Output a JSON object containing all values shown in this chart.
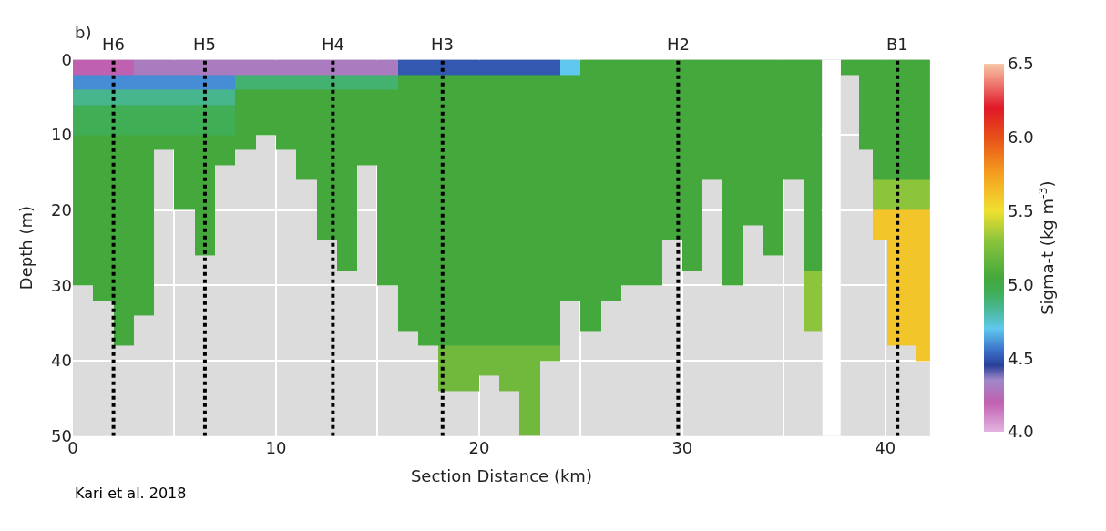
{
  "chart_data": {
    "type": "heatmap",
    "title": "b)",
    "ylabel": "Depth (m)",
    "xlabel": "Section Distance (km)",
    "clabel": "Sigma-t (kg m$^{-3}$)",
    "annotations": [
      "Kari et al. 2018"
    ],
    "xlim": [
      0,
      42.2
    ],
    "xticks": [
      0,
      {
        "value": 5,
        "label": null
      },
      10,
      {
        "value": 15,
        "label": null
      },
      20,
      {
        "value": 25,
        "label": null
      },
      30,
      {
        "value": 35,
        "label": null
      },
      40
    ],
    "ylim": [
      50,
      0
    ],
    "yticks": [
      0,
      10,
      20,
      30,
      40,
      50
    ],
    "grid": true,
    "x": [
      0.5,
      1.5,
      2.5,
      3.5,
      4.5,
      5.5,
      6.5,
      7.5,
      8.5,
      9.5,
      10.5,
      11.5,
      12.5,
      13.5,
      14.5,
      15.5,
      16.5,
      17.5,
      18.5,
      19.5,
      20.5,
      21.5,
      22.5,
      23.5,
      24.5,
      25.5,
      26.5,
      27.5,
      28.5,
      29.5,
      30.5,
      31.5,
      32.5,
      33.5,
      34.5,
      35.5,
      36.5,
      37.25,
      38.35,
      39.05,
      39.75,
      40.45,
      41.15,
      41.85
    ],
    "y": [
      1,
      3,
      5,
      7,
      9,
      11,
      13,
      15,
      17,
      19,
      21,
      23,
      25,
      27,
      29,
      31,
      33,
      35,
      37,
      39,
      41,
      43,
      45,
      47,
      49
    ],
    "clim": [
      4.0,
      6.5
    ],
    "cticks": [
      {
        "value": 4.0,
        "label": "4.0"
      },
      {
        "value": 4.5,
        "label": "4.5"
      },
      {
        "value": 5.0,
        "label": "5.0"
      },
      {
        "value": 5.5,
        "label": "5.5"
      },
      {
        "value": 6.0,
        "label": "6.0"
      },
      {
        "value": 6.5,
        "label": "6.5"
      }
    ],
    "bands": [
      {
        "axis": "x",
        "from": 36.9,
        "to": 37.8,
        "color": "#ffffff"
      }
    ],
    "ref_lines": [
      {
        "axis": "x",
        "value": 2,
        "label": "H6",
        "color": "#000000",
        "line_style": "dotted"
      },
      {
        "axis": "x",
        "value": 6.5,
        "label": "H5",
        "color": "#000000",
        "line_style": "dotted"
      },
      {
        "axis": "x",
        "value": 12.8,
        "label": "H4",
        "color": "#000000",
        "line_style": "dotted"
      },
      {
        "axis": "x",
        "value": 18.2,
        "label": "H3",
        "color": "#000000",
        "line_style": "dotted"
      },
      {
        "axis": "x",
        "value": 29.8,
        "label": "H2",
        "color": "#000000",
        "line_style": "dotted"
      },
      {
        "axis": "x",
        "value": 40.6,
        "label": "B1",
        "color": "#000000",
        "line_style": "dotted"
      }
    ],
    "cells": [
      [
        4.2,
        4.2,
        4.2,
        4.3,
        4.3,
        4.3,
        4.3,
        4.3,
        4.3,
        4.3,
        4.3,
        4.3,
        4.3,
        4.3,
        4.3,
        4.3,
        4.5,
        4.5,
        4.5,
        4.5,
        4.5,
        4.5,
        4.5,
        4.5,
        4.7,
        5.05,
        5.05,
        5.05,
        5.05,
        5.05,
        5.05,
        5.05,
        5.05,
        5.05,
        5.05,
        5.05,
        5.05,
        null,
        5.05,
        5.05,
        5.05,
        5.05,
        5.05,
        5.05
      ],
      [
        4.6,
        4.6,
        4.6,
        4.6,
        4.6,
        4.6,
        4.6,
        4.6,
        4.9,
        4.9,
        4.9,
        4.9,
        4.9,
        4.9,
        4.9,
        4.9,
        5.05,
        5.05,
        5.05,
        5.05,
        5.05,
        5.05,
        5.05,
        5.05,
        5.05,
        5.05,
        5.05,
        5.05,
        5.05,
        5.05,
        5.05,
        5.05,
        5.05,
        5.05,
        5.05,
        5.05,
        5.05,
        null,
        null,
        5.05,
        5.05,
        5.05,
        5.05,
        5.05
      ],
      [
        4.85,
        4.85,
        4.85,
        4.85,
        4.85,
        4.85,
        4.85,
        4.85,
        5.05,
        5.05,
        5.05,
        5.05,
        5.05,
        5.05,
        5.05,
        5.05,
        5.05,
        5.05,
        5.05,
        5.05,
        5.05,
        5.05,
        5.05,
        5.05,
        5.05,
        5.05,
        5.05,
        5.05,
        5.05,
        5.05,
        5.05,
        5.05,
        5.05,
        5.05,
        5.05,
        5.05,
        5.05,
        null,
        null,
        5.05,
        5.05,
        5.05,
        5.05,
        5.05
      ],
      [
        4.95,
        4.95,
        4.95,
        4.95,
        4.95,
        4.95,
        4.95,
        4.95,
        5.05,
        5.05,
        5.05,
        5.05,
        5.05,
        5.05,
        5.05,
        5.05,
        5.05,
        5.05,
        5.05,
        5.05,
        5.05,
        5.05,
        5.05,
        5.05,
        5.05,
        5.05,
        5.05,
        5.05,
        5.05,
        5.05,
        5.05,
        5.05,
        5.05,
        5.05,
        5.05,
        5.05,
        5.05,
        null,
        null,
        5.05,
        5.05,
        5.05,
        5.05,
        5.05
      ],
      [
        4.95,
        4.95,
        4.95,
        4.95,
        4.95,
        4.95,
        4.95,
        4.95,
        5.05,
        5.05,
        5.05,
        5.05,
        5.05,
        5.05,
        5.05,
        5.05,
        5.05,
        5.05,
        5.05,
        5.05,
        5.05,
        5.05,
        5.05,
        5.05,
        5.05,
        5.05,
        5.05,
        5.05,
        5.05,
        5.05,
        5.05,
        5.05,
        5.05,
        5.05,
        5.05,
        5.05,
        5.05,
        null,
        null,
        5.05,
        5.05,
        5.05,
        5.05,
        5.05
      ],
      [
        5.05,
        5.05,
        5.05,
        5.05,
        5.05,
        5.05,
        5.05,
        5.05,
        5.05,
        null,
        5.05,
        5.05,
        5.05,
        5.05,
        5.05,
        5.05,
        5.05,
        5.05,
        5.05,
        5.05,
        5.05,
        5.05,
        5.05,
        5.05,
        5.05,
        5.05,
        5.05,
        5.05,
        5.05,
        5.05,
        5.05,
        5.05,
        5.05,
        5.05,
        5.05,
        5.05,
        5.05,
        null,
        null,
        5.05,
        5.05,
        5.05,
        5.05,
        5.05
      ],
      [
        5.05,
        5.05,
        5.05,
        5.05,
        null,
        5.05,
        5.05,
        5.05,
        null,
        null,
        null,
        5.05,
        5.05,
        5.05,
        5.05,
        5.05,
        5.05,
        5.05,
        5.05,
        5.05,
        5.05,
        5.05,
        5.05,
        5.05,
        5.05,
        5.05,
        5.05,
        5.05,
        5.05,
        5.05,
        5.05,
        5.05,
        5.05,
        5.05,
        5.05,
        5.05,
        5.05,
        null,
        null,
        null,
        5.05,
        5.05,
        5.05,
        5.05
      ],
      [
        5.05,
        5.05,
        5.05,
        5.05,
        null,
        5.05,
        5.05,
        null,
        null,
        null,
        null,
        5.05,
        5.05,
        5.05,
        null,
        5.05,
        5.05,
        5.05,
        5.05,
        5.05,
        5.05,
        5.05,
        5.05,
        5.05,
        5.05,
        5.05,
        5.05,
        5.05,
        5.05,
        5.05,
        5.05,
        5.05,
        5.05,
        5.05,
        5.05,
        5.05,
        5.05,
        null,
        null,
        null,
        5.05,
        5.05,
        5.05,
        5.05
      ],
      [
        5.05,
        5.05,
        5.05,
        5.05,
        null,
        5.05,
        5.05,
        null,
        null,
        null,
        null,
        null,
        5.05,
        5.05,
        null,
        5.05,
        5.05,
        5.05,
        5.05,
        5.05,
        5.05,
        5.05,
        5.05,
        5.05,
        5.05,
        5.05,
        5.05,
        5.05,
        5.05,
        5.05,
        5.05,
        null,
        5.05,
        5.05,
        5.05,
        null,
        5.05,
        null,
        null,
        null,
        5.3,
        5.3,
        5.3,
        5.3
      ],
      [
        5.05,
        5.05,
        5.05,
        5.05,
        null,
        5.05,
        5.05,
        null,
        null,
        null,
        null,
        null,
        5.05,
        5.05,
        null,
        5.05,
        5.05,
        5.05,
        5.05,
        5.05,
        5.05,
        5.05,
        5.05,
        5.05,
        5.05,
        5.05,
        5.05,
        5.05,
        5.05,
        5.05,
        5.05,
        null,
        5.05,
        5.05,
        5.05,
        null,
        5.05,
        null,
        null,
        null,
        5.3,
        5.3,
        5.3,
        5.3
      ],
      [
        5.05,
        5.05,
        5.05,
        5.05,
        null,
        null,
        5.05,
        null,
        null,
        null,
        null,
        null,
        5.05,
        5.05,
        null,
        5.05,
        5.05,
        5.05,
        5.05,
        5.05,
        5.05,
        5.05,
        5.05,
        5.05,
        5.05,
        5.05,
        5.05,
        5.05,
        5.05,
        5.05,
        5.05,
        null,
        5.05,
        5.05,
        5.05,
        null,
        5.05,
        null,
        null,
        null,
        5.6,
        5.6,
        5.6,
        5.6
      ],
      [
        5.05,
        5.05,
        5.05,
        5.05,
        null,
        null,
        5.05,
        null,
        null,
        null,
        null,
        null,
        5.05,
        5.05,
        null,
        5.05,
        5.05,
        5.05,
        5.05,
        5.05,
        5.05,
        5.05,
        5.05,
        5.05,
        5.05,
        5.05,
        5.05,
        5.05,
        5.05,
        5.05,
        5.05,
        null,
        5.05,
        null,
        5.05,
        null,
        5.05,
        null,
        null,
        null,
        5.6,
        5.6,
        5.6,
        5.6
      ],
      [
        5.05,
        5.05,
        5.05,
        5.05,
        null,
        null,
        5.05,
        null,
        null,
        null,
        null,
        null,
        null,
        5.05,
        null,
        5.05,
        5.05,
        5.05,
        5.05,
        5.05,
        5.05,
        5.05,
        5.05,
        5.05,
        5.05,
        5.05,
        5.05,
        5.05,
        5.05,
        null,
        5.05,
        null,
        5.05,
        null,
        5.05,
        null,
        5.05,
        null,
        null,
        null,
        null,
        5.6,
        5.6,
        5.6
      ],
      [
        5.05,
        5.05,
        5.05,
        5.05,
        null,
        null,
        null,
        null,
        null,
        null,
        null,
        null,
        null,
        5.05,
        null,
        5.05,
        5.05,
        5.05,
        5.05,
        5.05,
        5.05,
        5.05,
        5.05,
        5.05,
        5.05,
        5.05,
        5.05,
        5.05,
        5.05,
        null,
        5.05,
        null,
        5.05,
        null,
        null,
        null,
        5.05,
        null,
        null,
        null,
        null,
        5.6,
        5.6,
        5.6
      ],
      [
        5.05,
        5.05,
        5.05,
        5.05,
        null,
        null,
        null,
        null,
        null,
        null,
        null,
        null,
        null,
        null,
        null,
        5.05,
        5.05,
        5.05,
        5.05,
        5.05,
        5.05,
        5.05,
        5.05,
        5.05,
        5.05,
        5.05,
        5.05,
        5.05,
        5.05,
        null,
        null,
        null,
        5.05,
        null,
        null,
        null,
        5.3,
        null,
        null,
        null,
        null,
        5.6,
        5.6,
        5.6
      ],
      [
        null,
        5.05,
        5.05,
        5.05,
        null,
        null,
        null,
        null,
        null,
        null,
        null,
        null,
        null,
        null,
        null,
        null,
        5.05,
        5.05,
        5.05,
        5.05,
        5.05,
        5.05,
        5.05,
        5.05,
        5.05,
        5.05,
        5.05,
        null,
        null,
        null,
        null,
        null,
        null,
        null,
        null,
        null,
        5.3,
        null,
        null,
        null,
        null,
        5.6,
        5.6,
        5.6
      ],
      [
        null,
        null,
        5.05,
        5.05,
        null,
        null,
        null,
        null,
        null,
        null,
        null,
        null,
        null,
        null,
        null,
        null,
        5.05,
        5.05,
        5.05,
        5.05,
        5.05,
        5.05,
        5.05,
        5.05,
        null,
        5.05,
        null,
        null,
        null,
        null,
        null,
        null,
        null,
        null,
        null,
        null,
        5.3,
        null,
        null,
        null,
        null,
        5.6,
        5.6,
        5.6
      ],
      [
        null,
        null,
        5.05,
        null,
        null,
        null,
        null,
        null,
        null,
        null,
        null,
        null,
        null,
        null,
        null,
        null,
        5.05,
        5.05,
        5.05,
        5.05,
        5.05,
        5.05,
        5.05,
        5.05,
        null,
        5.05,
        null,
        null,
        null,
        null,
        null,
        null,
        null,
        null,
        null,
        null,
        5.3,
        null,
        null,
        null,
        null,
        5.6,
        5.6,
        5.6
      ],
      [
        null,
        null,
        5.05,
        null,
        null,
        null,
        null,
        null,
        null,
        null,
        null,
        null,
        null,
        null,
        null,
        null,
        null,
        5.05,
        5.05,
        5.05,
        5.05,
        5.05,
        5.05,
        5.05,
        null,
        null,
        null,
        null,
        null,
        null,
        null,
        null,
        null,
        null,
        null,
        null,
        null,
        null,
        null,
        null,
        null,
        5.6,
        5.6,
        5.6
      ],
      [
        null,
        null,
        null,
        null,
        null,
        null,
        null,
        null,
        null,
        null,
        null,
        null,
        null,
        null,
        null,
        null,
        null,
        null,
        5.2,
        5.2,
        5.2,
        5.2,
        5.2,
        5.2,
        null,
        null,
        null,
        null,
        null,
        null,
        null,
        null,
        null,
        null,
        null,
        null,
        null,
        null,
        null,
        null,
        null,
        null,
        null,
        5.6
      ],
      [
        null,
        null,
        null,
        null,
        null,
        null,
        null,
        null,
        null,
        null,
        null,
        null,
        null,
        null,
        null,
        null,
        null,
        null,
        5.2,
        5.2,
        5.2,
        5.2,
        5.2,
        null,
        null,
        null,
        null,
        null,
        null,
        null,
        null,
        null,
        null,
        null,
        null,
        null,
        null,
        null,
        null,
        null,
        null,
        null,
        null,
        null
      ],
      [
        null,
        null,
        null,
        null,
        null,
        null,
        null,
        null,
        null,
        null,
        null,
        null,
        null,
        null,
        null,
        null,
        null,
        null,
        5.2,
        5.2,
        null,
        5.2,
        5.2,
        null,
        null,
        null,
        null,
        null,
        null,
        null,
        null,
        null,
        null,
        null,
        null,
        null,
        null,
        null,
        null,
        null,
        null,
        null,
        null,
        null
      ],
      [
        null,
        null,
        null,
        null,
        null,
        null,
        null,
        null,
        null,
        null,
        null,
        null,
        null,
        null,
        null,
        null,
        null,
        null,
        null,
        null,
        null,
        null,
        5.2,
        null,
        null,
        null,
        null,
        null,
        null,
        null,
        null,
        null,
        null,
        null,
        null,
        null,
        null,
        null,
        null,
        null,
        null,
        null,
        null,
        null
      ],
      [
        null,
        null,
        null,
        null,
        null,
        null,
        null,
        null,
        null,
        null,
        null,
        null,
        null,
        null,
        null,
        null,
        null,
        null,
        null,
        null,
        null,
        null,
        5.2,
        null,
        null,
        null,
        null,
        null,
        null,
        null,
        null,
        null,
        null,
        null,
        null,
        null,
        null,
        null,
        null,
        null,
        null,
        null,
        null,
        null
      ],
      [
        null,
        null,
        null,
        null,
        null,
        null,
        null,
        null,
        null,
        null,
        null,
        null,
        null,
        null,
        null,
        null,
        null,
        null,
        null,
        null,
        null,
        null,
        5.2,
        null,
        null,
        null,
        null,
        null,
        null,
        null,
        null,
        null,
        null,
        null,
        null,
        null,
        null,
        null,
        null,
        null,
        null,
        null,
        null,
        null
      ]
    ]
  }
}
